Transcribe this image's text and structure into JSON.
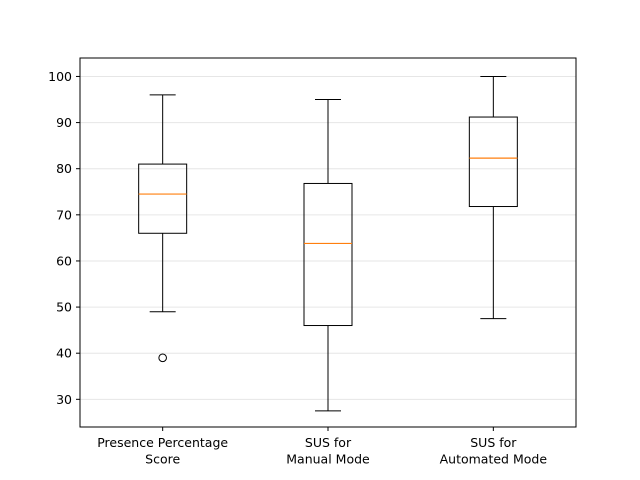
{
  "chart_data": {
    "type": "box",
    "title": "",
    "xlabel": "",
    "ylabel": "",
    "ylim": [
      24,
      104
    ],
    "yticks": [
      30,
      40,
      50,
      60,
      70,
      80,
      90,
      100
    ],
    "grid": "horizontal",
    "colors": {
      "box": "#000000",
      "median": "#ff7f0e",
      "grid": "#e6e6e6"
    },
    "categories": [
      [
        "Presence Percentage",
        "Score"
      ],
      [
        "SUS for",
        "Manual Mode"
      ],
      [
        "SUS for",
        "Automated Mode"
      ]
    ],
    "boxes": [
      {
        "whislo": 49,
        "q1": 66,
        "med": 74.5,
        "q3": 81,
        "whishi": 96,
        "fliers": [
          39
        ]
      },
      {
        "whislo": 27.5,
        "q1": 46,
        "med": 63.8,
        "q3": 76.8,
        "whishi": 95,
        "fliers": []
      },
      {
        "whislo": 47.5,
        "q1": 71.8,
        "med": 82.3,
        "q3": 91.2,
        "whishi": 100,
        "fliers": []
      }
    ]
  }
}
